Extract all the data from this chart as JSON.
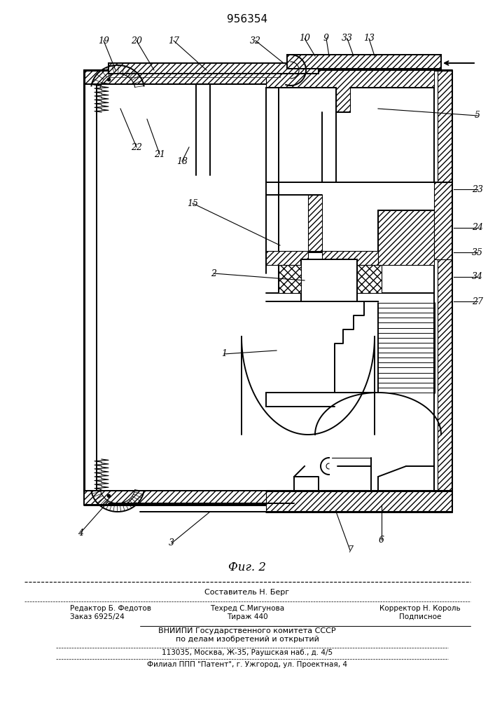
{
  "title": "956354",
  "fig_label": "Фиг. 2",
  "bg_color": "#ffffff",
  "line_color": "#000000",
  "footer_lines": [
    "Составитель Н. Берг",
    "Редактор Б. Федотов",
    "Техред С.Мигунова",
    "Корректор Н. Король",
    "Заказ 6925/24",
    "Тираж 440",
    "Подписное",
    "ВНИИПИ Государственного комитета СССР",
    "по делам изобретений и открытий",
    "113035, Москва, Ж-35, Раушская наб., д. 4/5",
    "Филиал ППП \"Патент\", г. Ужгород, ул. Проектная, 4"
  ]
}
